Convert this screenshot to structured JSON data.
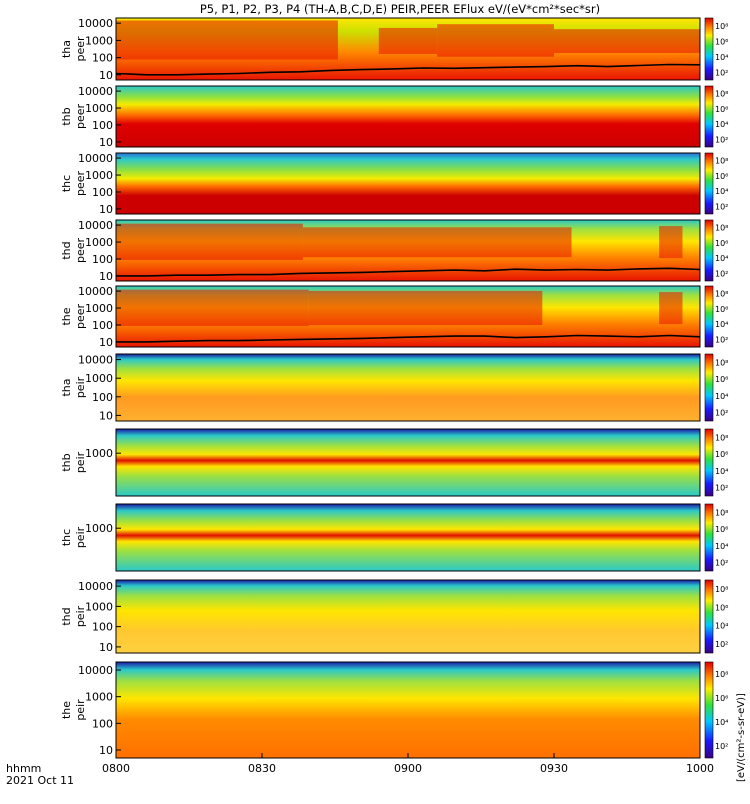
{
  "title": "P5, P1, P2, P3, P4 (TH-A,B,C,D,E) PEIR,PEER EFlux eV/(eV*cm²*sec*sr)",
  "footer": {
    "time_label": "hhmm",
    "date_label": "2021 Oct 11",
    "colorbar_axis_label": "[eV/(cm²-s-sr-eV)]"
  },
  "colors": {
    "low": "#1a1aa8",
    "mid": "#2bd4d4",
    "high": "#f0e200",
    "max": "#dd0000"
  },
  "chart_data": {
    "type": "heatmap",
    "x": {
      "ticks": [
        "0800",
        "0830",
        "0900",
        "0930",
        "1000"
      ],
      "range": [
        "08:00",
        "10:00"
      ]
    },
    "colorbar": {
      "scale": "log",
      "ticks": [
        "10²",
        "10⁴",
        "10⁶",
        "10⁸"
      ]
    },
    "panels": [
      {
        "id": "tha-peer",
        "probe_label": "tha",
        "species_label": "peer",
        "yticks": [
          "10",
          "100",
          "1000",
          "10000"
        ],
        "ylim": [
          5,
          20000
        ],
        "yscale": "log",
        "background": "#ee1800",
        "bands": [
          {
            "fraction": 0.0,
            "color": "#ffe600"
          },
          {
            "fraction": 0.22,
            "color": "#cce000"
          },
          {
            "fraction": 0.55,
            "color": "#ff8800"
          },
          {
            "fraction": 1.0,
            "color": "#e81400"
          }
        ],
        "hot_intervals": [
          {
            "x": [
              0,
              0.38
            ],
            "level": 0.9
          },
          {
            "x": [
              0.45,
              0.55
            ],
            "level": 0.6
          },
          {
            "x": [
              0.55,
              0.75
            ],
            "level": 0.75
          },
          {
            "x": [
              0.75,
              1.0
            ],
            "level": 0.55
          }
        ],
        "trace": [
          12,
          10,
          10,
          11,
          12,
          14,
          15,
          18,
          20,
          22,
          25,
          24,
          26,
          28,
          30,
          34,
          30,
          35,
          40,
          38
        ]
      },
      {
        "id": "thb-peer",
        "probe_label": "thb",
        "species_label": "peer",
        "yticks": [
          "10",
          "100",
          "1000",
          "10000"
        ],
        "ylim": [
          5,
          20000
        ],
        "yscale": "log",
        "background": "#cc0000",
        "bands": [
          {
            "fraction": 0.0,
            "color": "#2bc9c9"
          },
          {
            "fraction": 0.18,
            "color": "#8fe040"
          },
          {
            "fraction": 0.3,
            "color": "#f4ec00"
          },
          {
            "fraction": 0.48,
            "color": "#ff6a00"
          },
          {
            "fraction": 0.62,
            "color": "#e00000"
          },
          {
            "fraction": 1.0,
            "color": "#cc0000"
          }
        ],
        "hot_intervals": [],
        "trace": []
      },
      {
        "id": "thc-peer",
        "probe_label": "thc",
        "species_label": "peer",
        "yticks": [
          "10",
          "100",
          "1000",
          "10000"
        ],
        "ylim": [
          5,
          20000
        ],
        "yscale": "log",
        "background": "#cc0000",
        "bands": [
          {
            "fraction": 0.0,
            "color": "#2a6fd9"
          },
          {
            "fraction": 0.1,
            "color": "#2bc9c9"
          },
          {
            "fraction": 0.28,
            "color": "#8fe040"
          },
          {
            "fraction": 0.42,
            "color": "#f4ec00"
          },
          {
            "fraction": 0.55,
            "color": "#ff6a00"
          },
          {
            "fraction": 0.7,
            "color": "#cc0000"
          }
        ],
        "hot_intervals": [],
        "trace": []
      },
      {
        "id": "thd-peer",
        "probe_label": "thd",
        "species_label": "peer",
        "yticks": [
          "10",
          "100",
          "1000",
          "10000"
        ],
        "ylim": [
          5,
          20000
        ],
        "yscale": "log",
        "background": "#e81400",
        "bands": [
          {
            "fraction": 0.0,
            "color": "#2bc9c9"
          },
          {
            "fraction": 0.15,
            "color": "#9ee040"
          },
          {
            "fraction": 0.35,
            "color": "#ffe600"
          },
          {
            "fraction": 0.6,
            "color": "#ff8800"
          },
          {
            "fraction": 1.0,
            "color": "#e81400"
          }
        ],
        "hot_intervals": [
          {
            "x": [
              0,
              0.32
            ],
            "level": 0.85
          },
          {
            "x": [
              0.32,
              0.78
            ],
            "level": 0.7
          },
          {
            "x": [
              0.93,
              0.97
            ],
            "level": 0.75
          }
        ],
        "trace": [
          10,
          10,
          11,
          11,
          12,
          12,
          14,
          15,
          16,
          18,
          20,
          22,
          20,
          25,
          22,
          24,
          22,
          26,
          28,
          24
        ]
      },
      {
        "id": "the-peer",
        "probe_label": "the",
        "species_label": "peer",
        "yticks": [
          "10",
          "100",
          "1000",
          "10000"
        ],
        "ylim": [
          5,
          20000
        ],
        "yscale": "log",
        "background": "#e81400",
        "bands": [
          {
            "fraction": 0.0,
            "color": "#2bc9c9"
          },
          {
            "fraction": 0.15,
            "color": "#9ee040"
          },
          {
            "fraction": 0.35,
            "color": "#ffe600"
          },
          {
            "fraction": 0.6,
            "color": "#ff8800"
          },
          {
            "fraction": 1.0,
            "color": "#e81400"
          }
        ],
        "hot_intervals": [
          {
            "x": [
              0,
              0.33
            ],
            "level": 0.85
          },
          {
            "x": [
              0.33,
              0.73
            ],
            "level": 0.8
          },
          {
            "x": [
              0.93,
              0.97
            ],
            "level": 0.75
          }
        ],
        "trace": [
          10,
          10,
          11,
          12,
          12,
          13,
          14,
          15,
          16,
          18,
          20,
          22,
          22,
          18,
          20,
          24,
          22,
          20,
          24,
          20
        ]
      },
      {
        "id": "tha-peir",
        "probe_label": "tha",
        "species_label": "peir",
        "yticks": [
          "10",
          "100",
          "1000",
          "10000"
        ],
        "ylim": [
          5,
          20000
        ],
        "yscale": "log",
        "background": "#f0a020",
        "bands": [
          {
            "fraction": 0.0,
            "color": "#1a1aa8"
          },
          {
            "fraction": 0.08,
            "color": "#2bc9c9"
          },
          {
            "fraction": 0.22,
            "color": "#9ee040"
          },
          {
            "fraction": 0.4,
            "color": "#ffe600"
          },
          {
            "fraction": 0.65,
            "color": "#ff9a20"
          },
          {
            "fraction": 1.0,
            "color": "#ffb030"
          }
        ],
        "hot_intervals": [],
        "trace": []
      },
      {
        "id": "thb-peir",
        "probe_label": "thb",
        "species_label": "peir",
        "yticks": [
          "1000"
        ],
        "ylim": [
          5,
          20000
        ],
        "yscale": "log",
        "background": "#d01000",
        "bands": [
          {
            "fraction": 0.0,
            "color": "#1a1aa8"
          },
          {
            "fraction": 0.1,
            "color": "#2bc9c9"
          },
          {
            "fraction": 0.25,
            "color": "#9ee040"
          },
          {
            "fraction": 0.38,
            "color": "#ffe600"
          },
          {
            "fraction": 0.47,
            "color": "#e01000"
          },
          {
            "fraction": 0.56,
            "color": "#ffe600"
          },
          {
            "fraction": 0.7,
            "color": "#9ee040"
          },
          {
            "fraction": 1.0,
            "color": "#2bc9c9"
          }
        ],
        "hot_intervals": [],
        "trace": []
      },
      {
        "id": "thc-peir",
        "probe_label": "thc",
        "species_label": "peir",
        "yticks": [
          "1000"
        ],
        "ylim": [
          5,
          20000
        ],
        "yscale": "log",
        "background": "#d01000",
        "bands": [
          {
            "fraction": 0.0,
            "color": "#1a1aa8"
          },
          {
            "fraction": 0.1,
            "color": "#2bc9c9"
          },
          {
            "fraction": 0.25,
            "color": "#9ee040"
          },
          {
            "fraction": 0.38,
            "color": "#ffe600"
          },
          {
            "fraction": 0.47,
            "color": "#e01000"
          },
          {
            "fraction": 0.56,
            "color": "#ffe600"
          },
          {
            "fraction": 0.7,
            "color": "#9ee040"
          },
          {
            "fraction": 1.0,
            "color": "#2bc9c9"
          }
        ],
        "hot_intervals": [],
        "trace": []
      },
      {
        "id": "thd-peir",
        "probe_label": "thd",
        "species_label": "peir",
        "yticks": [
          "10",
          "100",
          "1000",
          "10000"
        ],
        "ylim": [
          5,
          20000
        ],
        "yscale": "log",
        "background": "#f0a020",
        "bands": [
          {
            "fraction": 0.0,
            "color": "#1a1aa8"
          },
          {
            "fraction": 0.08,
            "color": "#2bc9c9"
          },
          {
            "fraction": 0.22,
            "color": "#9ee040"
          },
          {
            "fraction": 0.42,
            "color": "#ffe600"
          },
          {
            "fraction": 0.7,
            "color": "#ffc830"
          },
          {
            "fraction": 1.0,
            "color": "#ffd040"
          }
        ],
        "hot_intervals": [],
        "trace": []
      },
      {
        "id": "the-peir",
        "probe_label": "the",
        "species_label": "peir",
        "yticks": [
          "10",
          "100",
          "1000",
          "10000"
        ],
        "ylim": [
          5,
          20000
        ],
        "yscale": "log",
        "background": "#f07000",
        "bands": [
          {
            "fraction": 0.0,
            "color": "#1a1aa8"
          },
          {
            "fraction": 0.08,
            "color": "#2bc9c9"
          },
          {
            "fraction": 0.2,
            "color": "#9ee040"
          },
          {
            "fraction": 0.38,
            "color": "#ffe600"
          },
          {
            "fraction": 0.6,
            "color": "#ff8a00"
          },
          {
            "fraction": 1.0,
            "color": "#ff7000"
          }
        ],
        "hot_intervals": [],
        "trace": []
      }
    ]
  }
}
